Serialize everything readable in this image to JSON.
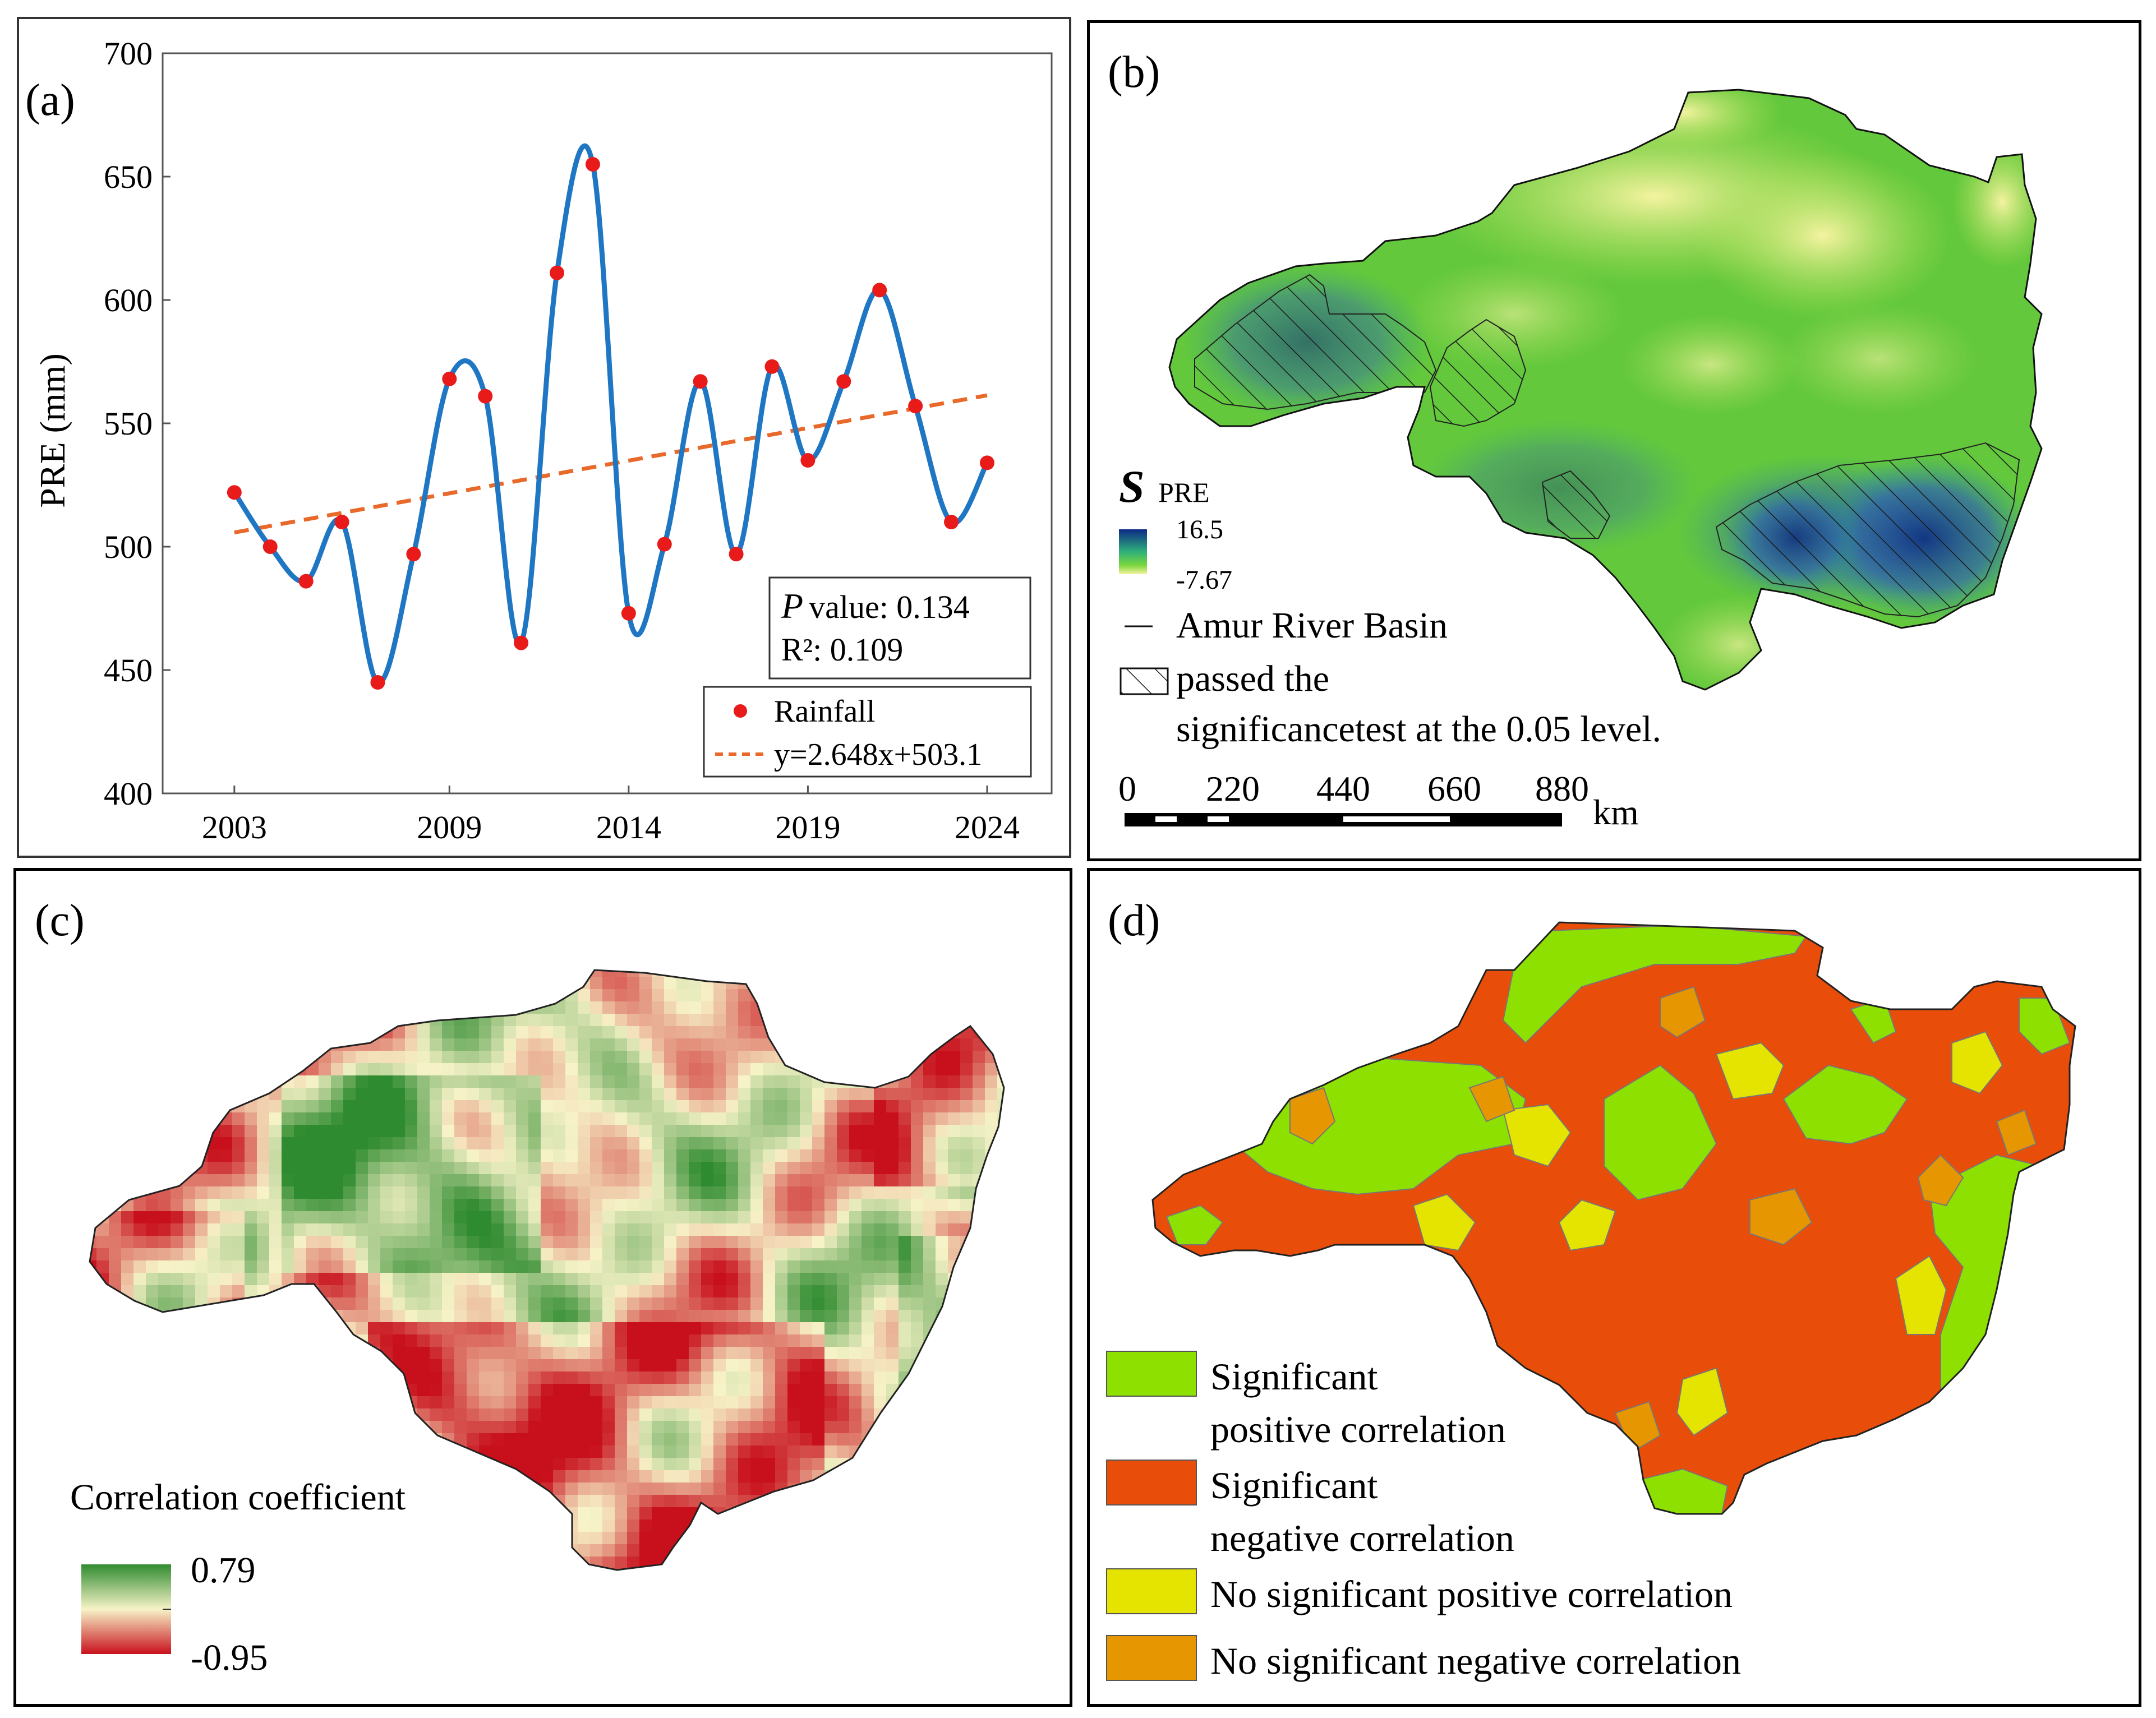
{
  "chart_data": [
    {
      "panel": "(a)",
      "type": "line",
      "ylabel": "PRE (mm)",
      "xlabel": "",
      "ylim": [
        400,
        700
      ],
      "yticks": [
        400,
        450,
        500,
        550,
        600,
        650,
        700
      ],
      "xticks": [
        2003,
        2009,
        2014,
        2019,
        2024
      ],
      "series": [
        {
          "name": "Rainfall",
          "x": [
            2003,
            2004,
            2005,
            2006,
            2007,
            2008,
            2009,
            2010,
            2011,
            2012,
            2013,
            2014,
            2015,
            2016,
            2017,
            2018,
            2019,
            2020,
            2021,
            2022,
            2023,
            2024
          ],
          "values": [
            522,
            500,
            486,
            510,
            445,
            497,
            568,
            561,
            461,
            611,
            655,
            473,
            501,
            567,
            497,
            573,
            535,
            567,
            604,
            557,
            510,
            534
          ]
        },
        {
          "name": "y=2.648x+503.1",
          "slope": 2.648,
          "intercept": 503.1
        }
      ],
      "legend": [
        "Rainfall",
        "y=2.648x+503.1"
      ],
      "stats": {
        "p_label": "P",
        "p_text": "value: 0.134",
        "r2_text": "R²: 0.109"
      }
    },
    {
      "panel": "(b)",
      "type": "heatmap",
      "title_symbol": "S",
      "title_sub": "PRE",
      "legend_max": "16.5",
      "legend_min": "-7.67",
      "basin_label": "Amur River Basin",
      "hatch_label_1": "passed the",
      "hatch_label_2": "significancetest at the 0.05 level.",
      "scale_ticks": [
        "0",
        "220",
        "440",
        "660",
        "880"
      ],
      "scale_unit": "km"
    },
    {
      "panel": "(c)",
      "type": "heatmap",
      "legend_title": "Correlation coefficient",
      "legend_max": "0.79",
      "legend_min": "-0.95"
    },
    {
      "panel": "(d)",
      "type": "heatmap",
      "categories": [
        {
          "line1": "Significant",
          "line2": "positive correlation",
          "color": "#8ee000"
        },
        {
          "line1": "Significant",
          "line2": "negative correlation",
          "color": "#e84e0a"
        },
        {
          "line1": "No significant positive correlation",
          "line2": "",
          "color": "#e4e400"
        },
        {
          "line1": "No significant negative correlation",
          "line2": "",
          "color": "#e69600"
        }
      ]
    }
  ],
  "labels": {
    "a": "(a)",
    "b": "(b)",
    "c": "(c)",
    "d": "(d)"
  },
  "colors": {
    "line": "#1f77c4",
    "marker": "#e81a1a",
    "trend": "#e8692a",
    "spre_high": "#0c2a86",
    "spre_mid": "#63c83c",
    "spre_low": "#f6f3a0",
    "corr_high": "#2f8b2f",
    "corr_mid": "#f7f3c8",
    "corr_low": "#c8101c"
  }
}
